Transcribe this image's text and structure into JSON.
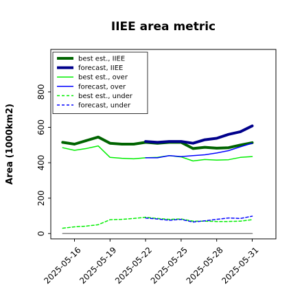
{
  "chart_data": {
    "type": "line",
    "title": "IIEE area metric",
    "ylabel": "Area (1000km2)",
    "xlabel": "",
    "ylim": [
      -30,
      1040
    ],
    "yticks": [
      0,
      200,
      400,
      600,
      800
    ],
    "x_tick_labels": [
      "2025-05-16",
      "2025-05-19",
      "2025-05-22",
      "2025-05-25",
      "2025-05-28",
      "2025-05-31"
    ],
    "x_tick_values": [
      "2025-05-16",
      "2025-05-19",
      "2025-05-22",
      "2025-05-25",
      "2025-05-28",
      "2025-05-31"
    ],
    "highlight_tick": "2025-05-22",
    "highlight_color": "#228b22",
    "xlim": [
      "2025-05-14",
      "2025-06-02"
    ],
    "legend_position": "upper left",
    "grid": false,
    "series": [
      {
        "name": "best est., IIEE",
        "color": "#006400",
        "style": "solid",
        "width": 4,
        "x": [
          "2025-05-15",
          "2025-05-16",
          "2025-05-17",
          "2025-05-18",
          "2025-05-19",
          "2025-05-20",
          "2025-05-21",
          "2025-05-22",
          "2025-05-23",
          "2025-05-24",
          "2025-05-25",
          "2025-05-26",
          "2025-05-27",
          "2025-05-28",
          "2025-05-29",
          "2025-05-30",
          "2025-05-31"
        ],
        "y": [
          515,
          505,
          525,
          545,
          510,
          505,
          505,
          515,
          510,
          515,
          515,
          480,
          487,
          482,
          485,
          500,
          513
        ]
      },
      {
        "name": "forecast, IIEE",
        "color": "#00008b",
        "style": "solid",
        "width": 4,
        "x": [
          "2025-05-22",
          "2025-05-23",
          "2025-05-24",
          "2025-05-25",
          "2025-05-26",
          "2025-05-27",
          "2025-05-28",
          "2025-05-29",
          "2025-05-30",
          "2025-05-31"
        ],
        "y": [
          520,
          515,
          520,
          520,
          510,
          530,
          538,
          560,
          575,
          608
        ]
      },
      {
        "name": "best est., over",
        "color": "#00ee00",
        "style": "solid",
        "width": 1.5,
        "x": [
          "2025-05-15",
          "2025-05-16",
          "2025-05-17",
          "2025-05-18",
          "2025-05-19",
          "2025-05-20",
          "2025-05-21",
          "2025-05-22",
          "2025-05-23",
          "2025-05-24",
          "2025-05-25",
          "2025-05-26",
          "2025-05-27",
          "2025-05-28",
          "2025-05-29",
          "2025-05-30",
          "2025-05-31"
        ],
        "y": [
          485,
          470,
          480,
          495,
          430,
          425,
          422,
          428,
          430,
          440,
          433,
          410,
          418,
          415,
          417,
          430,
          435
        ]
      },
      {
        "name": "forecast, over",
        "color": "#0000ff",
        "style": "solid",
        "width": 1.5,
        "x": [
          "2025-05-22",
          "2025-05-23",
          "2025-05-24",
          "2025-05-25",
          "2025-05-26",
          "2025-05-27",
          "2025-05-28",
          "2025-05-29",
          "2025-05-30",
          "2025-05-31"
        ],
        "y": [
          428,
          428,
          440,
          435,
          440,
          445,
          455,
          468,
          490,
          510
        ]
      },
      {
        "name": "best est., under",
        "color": "#00ee00",
        "style": "dashed",
        "width": 1.5,
        "x": [
          "2025-05-15",
          "2025-05-16",
          "2025-05-17",
          "2025-05-18",
          "2025-05-19",
          "2025-05-20",
          "2025-05-21",
          "2025-05-22",
          "2025-05-23",
          "2025-05-24",
          "2025-05-25",
          "2025-05-26",
          "2025-05-27",
          "2025-05-28",
          "2025-05-29",
          "2025-05-30",
          "2025-05-31"
        ],
        "y": [
          30,
          38,
          42,
          50,
          78,
          80,
          85,
          92,
          85,
          80,
          82,
          70,
          70,
          68,
          68,
          70,
          78
        ]
      },
      {
        "name": "forecast, under",
        "color": "#0000ff",
        "style": "dashed",
        "width": 1.5,
        "x": [
          "2025-05-22",
          "2025-05-23",
          "2025-05-24",
          "2025-05-25",
          "2025-05-26",
          "2025-05-27",
          "2025-05-28",
          "2025-05-29",
          "2025-05-30",
          "2025-05-31"
        ],
        "y": [
          88,
          82,
          75,
          80,
          65,
          72,
          80,
          88,
          85,
          98
        ]
      },
      {
        "name": "",
        "color": "#808080",
        "style": "solid",
        "width": 1.5,
        "x": [
          "2025-05-15",
          "2025-05-31"
        ],
        "y": [
          0,
          0
        ]
      }
    ]
  }
}
